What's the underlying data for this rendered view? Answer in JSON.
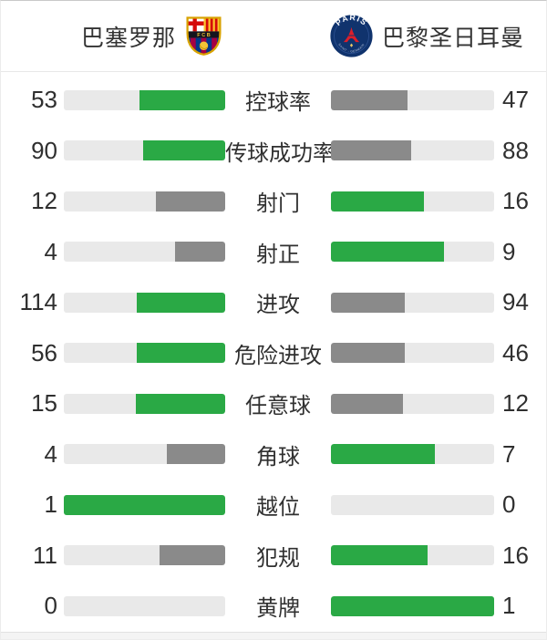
{
  "header": {
    "home": {
      "name": "巴塞罗那",
      "logo": "fc-barcelona-crest"
    },
    "away": {
      "name": "巴黎圣日耳曼",
      "logo": "psg-crest"
    }
  },
  "colors": {
    "win": "#2aa945",
    "lose": "#8a8a8a",
    "track": "#e9e9e9",
    "barca_blue": "#01388b",
    "barca_red": "#a50044",
    "barca_gold": "#f2c437",
    "psg_navy": "#10336d",
    "psg_red": "#da1f2b"
  },
  "chart_data": {
    "type": "bar",
    "categories": [
      "控球率",
      "传球成功率",
      "射门",
      "射正",
      "进攻",
      "危险进攻",
      "任意球",
      "角球",
      "越位",
      "犯规",
      "黄牌"
    ],
    "series": [
      {
        "name": "巴塞罗那",
        "values": [
          53,
          90,
          12,
          4,
          114,
          56,
          15,
          4,
          1,
          11,
          0
        ]
      },
      {
        "name": "巴黎圣日耳曼",
        "values": [
          47,
          88,
          16,
          9,
          94,
          46,
          12,
          7,
          0,
          16,
          1
        ]
      }
    ],
    "layout_hints": {
      "orientation": "horizontal-paired",
      "bars_anchored": "toward-center",
      "fill_fraction": "value / (home + away)",
      "higher_value_color": "#2aa945",
      "lower_value_color": "#8a8a8a",
      "legend_position": "top-header-with-club-crests",
      "grid": false
    }
  }
}
